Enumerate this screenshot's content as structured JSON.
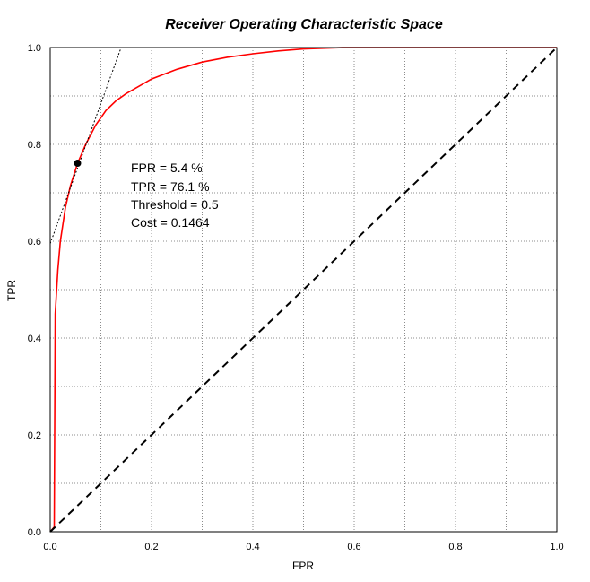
{
  "chart_data": {
    "type": "line",
    "title": "Receiver Operating Characteristic Space",
    "xlabel": "FPR",
    "ylabel": "TPR",
    "xlim": [
      0,
      1
    ],
    "ylim": [
      0,
      1
    ],
    "x_ticks": [
      "0.0",
      "0.2",
      "0.4",
      "0.6",
      "0.8",
      "1.0"
    ],
    "y_ticks": [
      "0.0",
      "0.2",
      "0.4",
      "0.6",
      "0.8",
      "1.0"
    ],
    "grid": true,
    "series": [
      {
        "color": "#ff0000",
        "style": "solid",
        "points": [
          [
            0,
            0
          ],
          [
            0.008,
            0.01
          ],
          [
            0.01,
            0.45
          ],
          [
            0.015,
            0.54
          ],
          [
            0.02,
            0.6
          ],
          [
            0.03,
            0.67
          ],
          [
            0.04,
            0.715
          ],
          [
            0.054,
            0.761
          ],
          [
            0.07,
            0.8
          ],
          [
            0.09,
            0.84
          ],
          [
            0.11,
            0.87
          ],
          [
            0.13,
            0.89
          ],
          [
            0.15,
            0.905
          ],
          [
            0.2,
            0.935
          ],
          [
            0.25,
            0.955
          ],
          [
            0.3,
            0.97
          ],
          [
            0.35,
            0.98
          ],
          [
            0.4,
            0.987
          ],
          [
            0.45,
            0.993
          ],
          [
            0.5,
            0.997
          ],
          [
            0.58,
            1.0
          ],
          [
            1.0,
            1.0
          ]
        ]
      },
      {
        "color": "#000000",
        "style": "dashed",
        "points": [
          [
            0,
            0
          ],
          [
            1,
            1
          ]
        ]
      },
      {
        "color": "#000000",
        "style": "dotted",
        "points": [
          [
            0,
            0.595
          ],
          [
            0.14,
            1.0
          ]
        ]
      }
    ],
    "marker": {
      "x": 0.054,
      "y": 0.761,
      "color": "#000000"
    },
    "annotations": [
      "FPR = 5.4 %",
      "TPR = 76.1 %",
      "Threshold = 0.5",
      "Cost = 0.1464"
    ]
  }
}
